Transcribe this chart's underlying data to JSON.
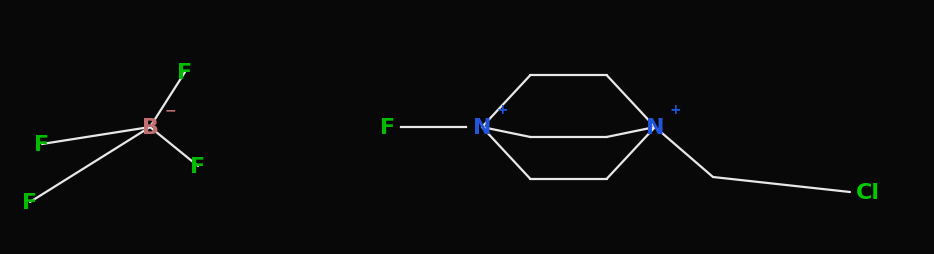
{
  "background_color": "#080808",
  "figsize": [
    9.34,
    2.55
  ],
  "dpi": 100,
  "B_color": "#c07070",
  "F_color": "#00bb00",
  "N_color": "#2255dd",
  "Cl_color": "#00cc00",
  "line_color": "#e8e8e8",
  "line_width": 1.6,
  "label_fontsize": 16,
  "charge_fontsize": 10,
  "B": [
    1.5,
    1.27
  ],
  "BF4_F": [
    [
      1.85,
      1.82
    ],
    [
      0.42,
      1.1
    ],
    [
      1.98,
      0.88
    ],
    [
      0.3,
      0.52
    ]
  ],
  "F_cation": [
    3.88,
    1.27
  ],
  "N1": [
    4.82,
    1.27
  ],
  "N2": [
    6.55,
    1.27
  ],
  "Cl": [
    8.68,
    0.62
  ],
  "xlim": [
    0,
    9.34
  ],
  "ylim": [
    0.0,
    2.55
  ]
}
